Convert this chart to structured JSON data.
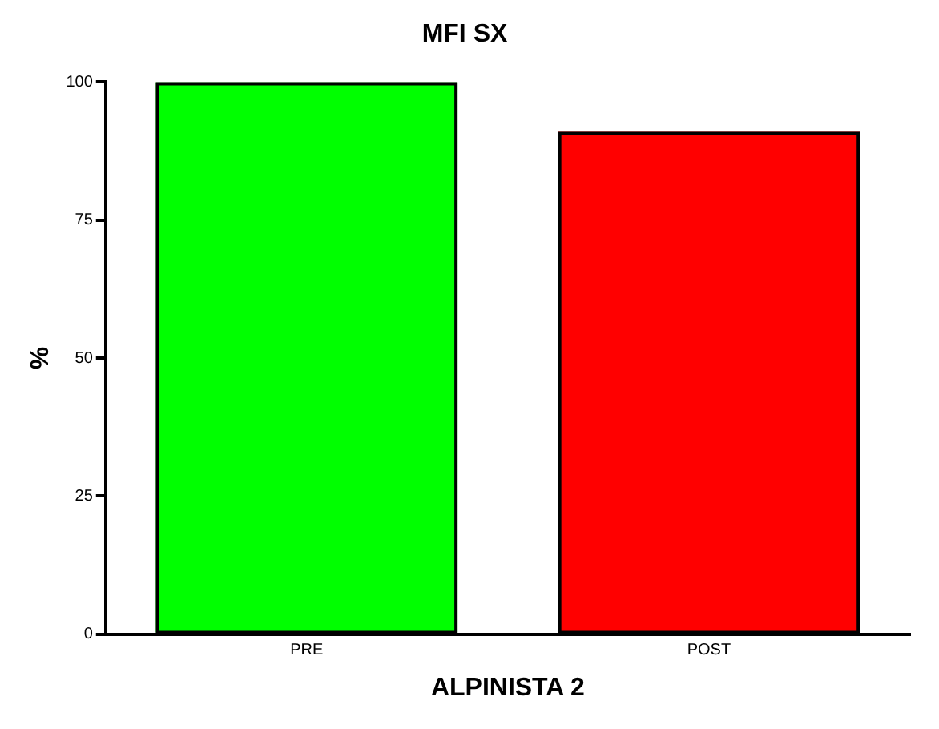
{
  "chart_data": {
    "type": "bar",
    "title": "MFI SX",
    "xlabel": "ALPINISTA 2",
    "ylabel": "%",
    "categories": [
      "PRE",
      "POST"
    ],
    "values": [
      100,
      91
    ],
    "colors": [
      "#00ff00",
      "#ff0000"
    ],
    "ylim": [
      0,
      100
    ],
    "yticks": [
      0,
      25,
      50,
      75,
      100
    ],
    "grid": false,
    "legend": false
  }
}
